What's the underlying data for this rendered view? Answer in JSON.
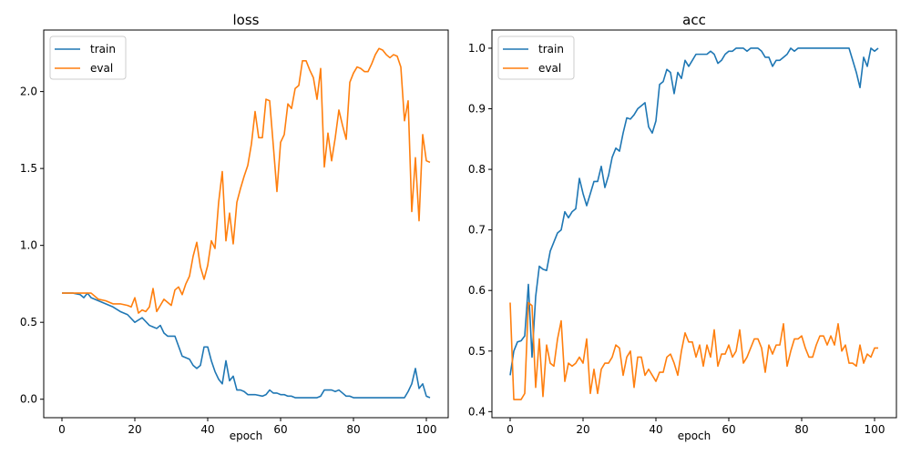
{
  "colors": {
    "train": "#1f77b4",
    "eval": "#ff7f0e"
  },
  "chart_data": [
    {
      "type": "line",
      "title": "loss",
      "xlabel": "epoch",
      "ylabel": "",
      "xlim": [
        -5,
        106
      ],
      "ylim": [
        -0.12,
        2.4
      ],
      "xticks": [
        0,
        20,
        40,
        60,
        80,
        100
      ],
      "yticks": [
        0.0,
        0.5,
        1.0,
        1.5,
        2.0
      ],
      "ytick_labels": [
        "0.0",
        "0.5",
        "1.0",
        "1.5",
        "2.0"
      ],
      "legend": "top-left",
      "series": [
        {
          "name": "train",
          "x": [
            0,
            3,
            5,
            6,
            7,
            8,
            10,
            12,
            14,
            16,
            18,
            20,
            22,
            24,
            25,
            26,
            27,
            28,
            29,
            30,
            31,
            33,
            35,
            36,
            37,
            38,
            39,
            40,
            41,
            42,
            43,
            44,
            45,
            46,
            47,
            48,
            49,
            50,
            51,
            52,
            53,
            55,
            56,
            57,
            58,
            59,
            60,
            61,
            62,
            63,
            64,
            65,
            66,
            67,
            68,
            69,
            70,
            71,
            72,
            73,
            74,
            75,
            76,
            77,
            78,
            79,
            80,
            81,
            82,
            83,
            84,
            85,
            86,
            87,
            88,
            89,
            90,
            91,
            92,
            93,
            94,
            95,
            96,
            97,
            98,
            99,
            100,
            101
          ],
          "y": [
            0.69,
            0.69,
            0.68,
            0.66,
            0.69,
            0.66,
            0.64,
            0.62,
            0.6,
            0.57,
            0.55,
            0.5,
            0.53,
            0.48,
            0.47,
            0.46,
            0.48,
            0.43,
            0.41,
            0.41,
            0.41,
            0.28,
            0.26,
            0.22,
            0.2,
            0.22,
            0.34,
            0.34,
            0.25,
            0.18,
            0.13,
            0.1,
            0.25,
            0.12,
            0.15,
            0.06,
            0.06,
            0.05,
            0.03,
            0.03,
            0.03,
            0.02,
            0.03,
            0.06,
            0.04,
            0.04,
            0.03,
            0.03,
            0.02,
            0.02,
            0.01,
            0.01,
            0.01,
            0.01,
            0.01,
            0.01,
            0.01,
            0.02,
            0.06,
            0.06,
            0.06,
            0.05,
            0.06,
            0.04,
            0.02,
            0.02,
            0.01,
            0.01,
            0.01,
            0.01,
            0.01,
            0.01,
            0.01,
            0.01,
            0.01,
            0.01,
            0.01,
            0.01,
            0.01,
            0.01,
            0.01,
            0.05,
            0.1,
            0.2,
            0.07,
            0.1,
            0.02,
            0.01
          ]
        },
        {
          "name": "eval",
          "x": [
            0,
            3,
            5,
            6,
            7,
            8,
            10,
            12,
            14,
            16,
            18,
            19,
            20,
            21,
            22,
            23,
            24,
            25,
            26,
            27,
            28,
            29,
            30,
            31,
            32,
            33,
            34,
            35,
            36,
            37,
            38,
            39,
            40,
            41,
            42,
            43,
            44,
            45,
            46,
            47,
            48,
            49,
            50,
            51,
            52,
            53,
            54,
            55,
            56,
            57,
            58,
            59,
            60,
            61,
            62,
            63,
            64,
            65,
            66,
            67,
            68,
            69,
            70,
            71,
            72,
            73,
            74,
            75,
            76,
            77,
            78,
            79,
            80,
            81,
            82,
            83,
            84,
            85,
            86,
            87,
            88,
            89,
            90,
            91,
            92,
            93,
            94,
            95,
            96,
            97,
            98,
            99,
            100,
            101
          ],
          "y": [
            0.69,
            0.69,
            0.69,
            0.69,
            0.69,
            0.69,
            0.65,
            0.64,
            0.62,
            0.62,
            0.61,
            0.6,
            0.66,
            0.56,
            0.58,
            0.57,
            0.6,
            0.72,
            0.57,
            0.61,
            0.65,
            0.63,
            0.61,
            0.71,
            0.73,
            0.68,
            0.75,
            0.8,
            0.93,
            1.02,
            0.86,
            0.78,
            0.87,
            1.03,
            0.98,
            1.28,
            1.48,
            1.03,
            1.21,
            1.01,
            1.28,
            1.37,
            1.45,
            1.52,
            1.66,
            1.87,
            1.7,
            1.7,
            1.95,
            1.94,
            1.65,
            1.35,
            1.67,
            1.72,
            1.92,
            1.89,
            2.02,
            2.04,
            2.2,
            2.2,
            2.14,
            2.09,
            1.95,
            2.15,
            1.51,
            1.73,
            1.55,
            1.7,
            1.88,
            1.78,
            1.69,
            2.06,
            2.12,
            2.16,
            2.15,
            2.13,
            2.13,
            2.18,
            2.24,
            2.28,
            2.27,
            2.24,
            2.22,
            2.24,
            2.23,
            2.16,
            1.81,
            1.94,
            1.22,
            1.57,
            1.16,
            1.72,
            1.55,
            1.54
          ]
        }
      ]
    },
    {
      "type": "line",
      "title": "acc",
      "xlabel": "epoch",
      "ylabel": "",
      "xlim": [
        -5,
        106
      ],
      "ylim": [
        0.39,
        1.03
      ],
      "xticks": [
        0,
        20,
        40,
        60,
        80,
        100
      ],
      "yticks": [
        0.4,
        0.5,
        0.6,
        0.7,
        0.8,
        0.9,
        1.0
      ],
      "ytick_labels": [
        "0.4",
        "0.5",
        "0.6",
        "0.7",
        "0.8",
        "0.9",
        "1.0"
      ],
      "legend": "top-left",
      "series": [
        {
          "name": "train",
          "x": [
            0,
            1,
            2,
            3,
            4,
            5,
            6,
            7,
            8,
            9,
            10,
            11,
            12,
            13,
            14,
            15,
            16,
            17,
            18,
            19,
            20,
            21,
            22,
            23,
            24,
            25,
            26,
            27,
            28,
            29,
            30,
            31,
            32,
            33,
            34,
            35,
            36,
            37,
            38,
            39,
            40,
            41,
            42,
            43,
            44,
            45,
            46,
            47,
            48,
            49,
            50,
            51,
            52,
            53,
            54,
            55,
            56,
            57,
            58,
            59,
            60,
            61,
            62,
            63,
            64,
            65,
            66,
            67,
            68,
            69,
            70,
            71,
            72,
            73,
            74,
            75,
            76,
            77,
            78,
            79,
            80,
            81,
            82,
            83,
            84,
            85,
            86,
            87,
            88,
            89,
            90,
            91,
            92,
            93,
            94,
            95,
            96,
            97,
            98,
            99,
            100,
            101
          ],
          "y": [
            0.46,
            0.5,
            0.515,
            0.517,
            0.525,
            0.61,
            0.49,
            0.59,
            0.64,
            0.635,
            0.633,
            0.665,
            0.68,
            0.695,
            0.7,
            0.73,
            0.72,
            0.73,
            0.735,
            0.785,
            0.76,
            0.74,
            0.76,
            0.78,
            0.78,
            0.805,
            0.77,
            0.79,
            0.82,
            0.835,
            0.83,
            0.86,
            0.885,
            0.883,
            0.89,
            0.9,
            0.905,
            0.91,
            0.87,
            0.86,
            0.88,
            0.94,
            0.945,
            0.965,
            0.96,
            0.925,
            0.96,
            0.95,
            0.98,
            0.97,
            0.98,
            0.99,
            0.99,
            0.99,
            0.99,
            0.995,
            0.99,
            0.975,
            0.98,
            0.99,
            0.995,
            0.995,
            1.0,
            1.0,
            1.0,
            0.995,
            1.0,
            1.0,
            1.0,
            0.995,
            0.985,
            0.985,
            0.97,
            0.98,
            0.98,
            0.985,
            0.99,
            1.0,
            0.995,
            1.0,
            1.0,
            1.0,
            1.0,
            1.0,
            1.0,
            1.0,
            1.0,
            1.0,
            1.0,
            1.0,
            1.0,
            1.0,
            1.0,
            1.0,
            0.98,
            0.96,
            0.935,
            0.985,
            0.97,
            1.0,
            0.995,
            1.0
          ]
        },
        {
          "name": "eval",
          "x": [
            0,
            1,
            2,
            3,
            4,
            5,
            6,
            7,
            8,
            9,
            10,
            11,
            12,
            13,
            14,
            15,
            16,
            17,
            18,
            19,
            20,
            21,
            22,
            23,
            24,
            25,
            26,
            27,
            28,
            29,
            30,
            31,
            32,
            33,
            34,
            35,
            36,
            37,
            38,
            39,
            40,
            41,
            42,
            43,
            44,
            45,
            46,
            47,
            48,
            49,
            50,
            51,
            52,
            53,
            54,
            55,
            56,
            57,
            58,
            59,
            60,
            61,
            62,
            63,
            64,
            65,
            66,
            67,
            68,
            69,
            70,
            71,
            72,
            73,
            74,
            75,
            76,
            77,
            78,
            79,
            80,
            81,
            82,
            83,
            84,
            85,
            86,
            87,
            88,
            89,
            90,
            91,
            92,
            93,
            94,
            95,
            96,
            97,
            98,
            99,
            100,
            101
          ],
          "y": [
            0.58,
            0.42,
            0.42,
            0.42,
            0.43,
            0.58,
            0.575,
            0.44,
            0.52,
            0.425,
            0.51,
            0.48,
            0.475,
            0.52,
            0.55,
            0.45,
            0.48,
            0.475,
            0.48,
            0.49,
            0.48,
            0.52,
            0.43,
            0.47,
            0.43,
            0.47,
            0.48,
            0.48,
            0.49,
            0.51,
            0.505,
            0.46,
            0.49,
            0.5,
            0.44,
            0.49,
            0.49,
            0.46,
            0.47,
            0.46,
            0.45,
            0.465,
            0.465,
            0.49,
            0.495,
            0.48,
            0.46,
            0.5,
            0.53,
            0.515,
            0.515,
            0.49,
            0.51,
            0.475,
            0.51,
            0.49,
            0.535,
            0.475,
            0.495,
            0.495,
            0.51,
            0.49,
            0.5,
            0.535,
            0.48,
            0.49,
            0.505,
            0.52,
            0.52,
            0.505,
            0.465,
            0.51,
            0.495,
            0.51,
            0.51,
            0.545,
            0.475,
            0.5,
            0.52,
            0.52,
            0.525,
            0.505,
            0.49,
            0.49,
            0.51,
            0.525,
            0.525,
            0.51,
            0.525,
            0.51,
            0.545,
            0.5,
            0.51,
            0.48,
            0.48,
            0.475,
            0.51,
            0.48,
            0.495,
            0.49,
            0.505,
            0.505
          ]
        }
      ]
    }
  ]
}
